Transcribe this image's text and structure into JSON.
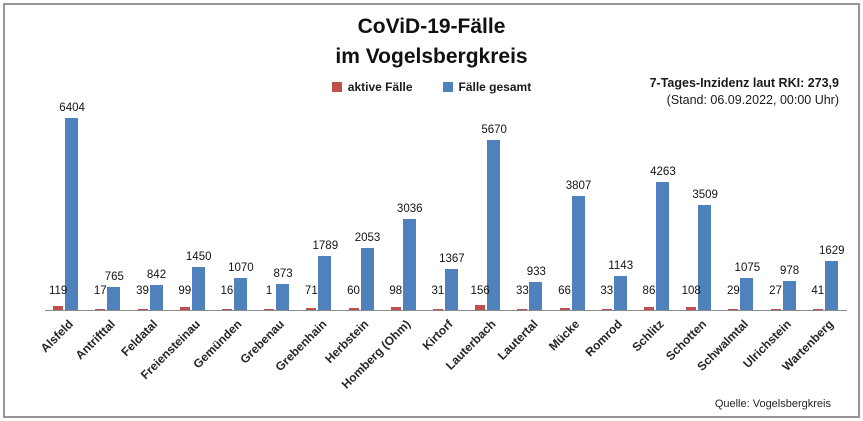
{
  "title": {
    "line1": "CoViD-19-Fälle",
    "line2": "im Vogelsbergkreis"
  },
  "legend": {
    "active_label": "aktive Fälle",
    "total_label": "Fälle gesamt"
  },
  "info": {
    "line1": "7-Tages-Inzidenz laut RKI: 273,9",
    "line2": "(Stand: 06.09.2022, 00:00 Uhr)"
  },
  "source": "Quelle: Vogelsbergkreis",
  "colors": {
    "active": "#c0504d",
    "total": "#4f81bd"
  },
  "chart_data": {
    "type": "bar",
    "title": "CoViD-19-Fälle im Vogelsbergkreis",
    "categories": [
      "Alsfeld",
      "Antrifttal",
      "Feldatal",
      "Freiensteinau",
      "Gemünden",
      "Grebenau",
      "Grebenhain",
      "Herbstein",
      "Homberg (Ohm)",
      "Kirtorf",
      "Lauterbach",
      "Lautertal",
      "Mücke",
      "Romrod",
      "Schlitz",
      "Schotten",
      "Schwalmtal",
      "Ulrichstein",
      "Wartenberg"
    ],
    "series": [
      {
        "name": "aktive Fälle",
        "color": "#c0504d",
        "values": [
          119,
          17,
          39,
          99,
          16,
          1,
          71,
          60,
          98,
          31,
          156,
          33,
          66,
          33,
          86,
          108,
          29,
          27,
          41
        ]
      },
      {
        "name": "Fälle gesamt",
        "color": "#4f81bd",
        "values": [
          6404,
          765,
          842,
          1450,
          1070,
          873,
          1789,
          2053,
          3036,
          1367,
          5670,
          933,
          3807,
          1143,
          4263,
          3509,
          1075,
          978,
          1629
        ]
      }
    ],
    "xlabel": "",
    "ylabel": "",
    "ylim": [
      0,
      6700
    ],
    "grid": false,
    "data_labels": true,
    "legend_position": "top-center"
  }
}
